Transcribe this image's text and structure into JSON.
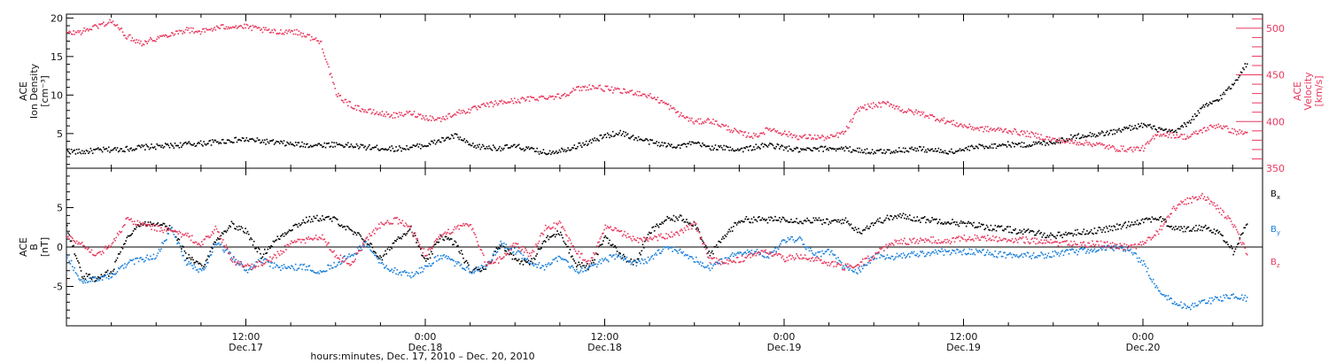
{
  "colors": {
    "black": "#000000",
    "pink": "#e8385e",
    "blue": "#1a7fd9"
  },
  "chart_data": [
    {
      "type": "scatter",
      "panel": "top",
      "ylabel_left_lines": [
        "ACE",
        "Ion Density",
        "[cm⁻³]"
      ],
      "ylabel_right_lines": [
        "ACE",
        "Velocity",
        "[km/s]"
      ],
      "ylim": [
        0.5,
        20.5
      ],
      "y_ticks": [
        5,
        10,
        15,
        20
      ],
      "y_tick_labels": [
        "5",
        "10",
        "15",
        "20"
      ],
      "y2lim": [
        350,
        515
      ],
      "y2_ticks": [
        350,
        400,
        450,
        500
      ],
      "y2_tick_labels": [
        "350",
        "400",
        "450",
        "500"
      ],
      "series": [
        {
          "name": "",
          "axis": "left",
          "color": "#000000",
          "x": [
            0,
            1,
            2,
            3,
            4,
            5,
            6,
            7,
            8,
            9,
            10,
            11,
            12,
            13,
            14,
            15,
            16,
            17,
            18,
            19,
            20,
            21,
            22,
            23,
            24,
            25,
            26,
            27,
            28,
            29,
            30,
            31,
            32,
            33,
            34,
            35,
            36,
            37,
            38,
            39,
            40,
            41,
            42,
            43,
            44,
            45,
            46,
            47,
            48,
            49,
            50,
            51,
            52,
            53,
            54,
            55,
            56,
            57,
            58,
            59,
            60,
            61,
            62,
            63,
            64,
            65,
            66,
            67,
            68,
            69,
            70,
            71,
            72,
            73,
            74,
            75,
            76,
            77,
            78,
            79
          ],
          "y": [
            2.8,
            2.7,
            2.9,
            3.0,
            3.1,
            3.3,
            3.4,
            3.5,
            3.7,
            3.8,
            4.0,
            4.2,
            4.3,
            4.1,
            3.9,
            3.7,
            3.6,
            3.6,
            3.7,
            3.5,
            3.3,
            3.2,
            3.1,
            3.3,
            3.6,
            4.2,
            4.8,
            3.5,
            3.3,
            3.2,
            3.4,
            3.0,
            2.6,
            2.9,
            3.4,
            4.0,
            4.8,
            5.2,
            4.5,
            4.0,
            3.6,
            3.5,
            3.8,
            3.3,
            3.2,
            3.0,
            3.3,
            3.6,
            3.2,
            2.9,
            3.0,
            3.2,
            3.1,
            2.9,
            2.7,
            2.8,
            3.0,
            3.1,
            2.9,
            2.7,
            3.0,
            3.4,
            3.5,
            3.7,
            3.6,
            3.8,
            4.0,
            4.5,
            4.9,
            5.0,
            5.3,
            5.8,
            6.2,
            5.6,
            5.2,
            6.5,
            8.5,
            9.5,
            11.5,
            14.5
          ]
        },
        {
          "name": "",
          "axis": "right",
          "color": "#e8385e",
          "x": [
            0,
            1,
            2,
            3,
            4,
            5,
            6,
            7,
            8,
            9,
            10,
            11,
            12,
            13,
            14,
            15,
            16,
            17,
            18,
            19,
            20,
            21,
            22,
            23,
            24,
            25,
            26,
            27,
            28,
            29,
            30,
            31,
            32,
            33,
            34,
            35,
            36,
            37,
            38,
            39,
            40,
            41,
            42,
            43,
            44,
            45,
            46,
            47,
            48,
            49,
            50,
            51,
            52,
            53,
            54,
            55,
            56,
            57,
            58,
            59,
            60,
            61,
            62,
            63,
            64,
            65,
            66,
            67,
            68,
            69,
            70,
            71,
            72,
            73,
            74,
            75,
            76,
            77,
            78,
            79
          ],
          "y": [
            495,
            497,
            503,
            508,
            492,
            485,
            490,
            495,
            499,
            497,
            501,
            503,
            502,
            499,
            496,
            498,
            493,
            485,
            430,
            418,
            412,
            409,
            407,
            410,
            405,
            403,
            410,
            413,
            418,
            421,
            423,
            425,
            427,
            428,
            435,
            438,
            436,
            433,
            432,
            428,
            420,
            408,
            400,
            402,
            395,
            388,
            385,
            393,
            388,
            384,
            384,
            383,
            389,
            415,
            418,
            420,
            412,
            410,
            405,
            400,
            396,
            393,
            392,
            391,
            388,
            385,
            381,
            379,
            378,
            376,
            372,
            371,
            372,
            388,
            386,
            384,
            392,
            397,
            390,
            388
          ]
        }
      ]
    },
    {
      "type": "scatter",
      "panel": "bottom",
      "ylabel_left_lines": [
        "ACE",
        "B",
        "[nT]"
      ],
      "ylim": [
        -10,
        10
      ],
      "y_ticks": [
        -5,
        0,
        5
      ],
      "y_tick_labels": [
        "-5",
        "0",
        "5"
      ],
      "zero_line": true,
      "legend": [
        {
          "label": "B",
          "sub": "x",
          "color": "#000000"
        },
        {
          "label": "B",
          "sub": "y",
          "color": "#1a7fd9"
        },
        {
          "label": "B",
          "sub": "z",
          "color": "#e8385e"
        }
      ],
      "series": [
        {
          "name": "Bx",
          "color": "#000000",
          "x": [
            0,
            1,
            2,
            3,
            4,
            5,
            6,
            7,
            8,
            9,
            10,
            11,
            12,
            13,
            14,
            15,
            16,
            17,
            18,
            19,
            20,
            21,
            22,
            23,
            24,
            25,
            26,
            27,
            28,
            29,
            30,
            31,
            32,
            33,
            34,
            35,
            36,
            37,
            38,
            39,
            40,
            41,
            42,
            43,
            44,
            45,
            46,
            47,
            48,
            49,
            50,
            51,
            52,
            53,
            54,
            55,
            56,
            57,
            58,
            59,
            60,
            61,
            62,
            63,
            64,
            65,
            66,
            67,
            68,
            69,
            70,
            71,
            72,
            73,
            74,
            75,
            76,
            77,
            78,
            79
          ],
          "y": [
            2.5,
            -3.5,
            -4.0,
            -3.0,
            1.5,
            3.0,
            3.2,
            2.5,
            -1.0,
            -2.5,
            1.0,
            3.0,
            2.0,
            -1.0,
            1.0,
            2.5,
            3.5,
            3.8,
            3.5,
            2.0,
            1.0,
            -1.5,
            1.0,
            2.5,
            -2.0,
            1.5,
            0.5,
            -3.0,
            -2.5,
            0.5,
            -1.5,
            -2.0,
            1.0,
            2.0,
            -2.0,
            -2.5,
            1.5,
            -1.0,
            -2.0,
            2.0,
            3.5,
            3.8,
            3.0,
            -1.0,
            1.5,
            3.5,
            3.6,
            3.5,
            3.7,
            3.4,
            3.5,
            3.2,
            3.5,
            2.0,
            3.2,
            3.8,
            4.0,
            3.6,
            3.5,
            3.3,
            3.0,
            2.8,
            2.5,
            2.3,
            2.0,
            1.8,
            1.5,
            1.8,
            2.0,
            2.2,
            2.5,
            3.0,
            3.5,
            3.8,
            2.5,
            2.3,
            2.6,
            2.0,
            -0.5,
            3.5
          ]
        },
        {
          "name": "By",
          "color": "#1a7fd9",
          "x": [
            0,
            1,
            2,
            3,
            4,
            5,
            6,
            7,
            8,
            9,
            10,
            11,
            12,
            13,
            14,
            15,
            16,
            17,
            18,
            19,
            20,
            21,
            22,
            23,
            24,
            25,
            26,
            27,
            28,
            29,
            30,
            31,
            32,
            33,
            34,
            35,
            36,
            37,
            38,
            39,
            40,
            41,
            42,
            43,
            44,
            45,
            46,
            47,
            48,
            49,
            50,
            51,
            52,
            53,
            54,
            55,
            56,
            57,
            58,
            59,
            60,
            61,
            62,
            63,
            64,
            65,
            66,
            67,
            68,
            69,
            70,
            71,
            72,
            73,
            74,
            75,
            76,
            77,
            78,
            79
          ],
          "y": [
            -1.0,
            -4.5,
            -4.0,
            -3.5,
            -2.0,
            -1.5,
            -1.0,
            2.5,
            -2.0,
            -3.0,
            0.5,
            -1.0,
            -3.0,
            -1.5,
            -2.5,
            -2.5,
            -2.5,
            -3.0,
            -2.0,
            -1.0,
            0.5,
            -2.0,
            -3.0,
            -3.5,
            -2.5,
            -1.0,
            -2.0,
            -3.0,
            -2.5,
            0.5,
            -0.5,
            -2.0,
            -2.5,
            -1.0,
            -3.0,
            -2.5,
            -1.5,
            -1.0,
            -2.0,
            -1.5,
            0.0,
            -0.5,
            -1.5,
            -2.5,
            -1.5,
            -0.5,
            -0.5,
            -1.0,
            1.0,
            1.0,
            -1.0,
            -0.5,
            -2.5,
            -3.0,
            -1.0,
            -1.2,
            -1.0,
            -0.8,
            -0.6,
            -0.5,
            -0.5,
            -0.5,
            -0.8,
            -1.0,
            -1.0,
            -1.0,
            -0.8,
            -0.6,
            -0.4,
            -0.2,
            0.0,
            -0.3,
            -2.0,
            -5.5,
            -7.0,
            -7.5,
            -7.0,
            -6.5,
            -6.0,
            -6.5
          ]
        },
        {
          "name": "Bz",
          "color": "#e8385e",
          "x": [
            0,
            1,
            2,
            3,
            4,
            5,
            6,
            7,
            8,
            9,
            10,
            11,
            12,
            13,
            14,
            15,
            16,
            17,
            18,
            19,
            20,
            21,
            22,
            23,
            24,
            25,
            26,
            27,
            28,
            29,
            30,
            31,
            32,
            33,
            34,
            35,
            36,
            37,
            38,
            39,
            40,
            41,
            42,
            43,
            44,
            45,
            46,
            47,
            48,
            49,
            50,
            51,
            52,
            53,
            54,
            55,
            56,
            57,
            58,
            59,
            60,
            61,
            62,
            63,
            64,
            65,
            66,
            67,
            68,
            69,
            70,
            71,
            72,
            73,
            74,
            75,
            76,
            77,
            78,
            79
          ],
          "y": [
            1.5,
            0.5,
            -1.0,
            0.5,
            3.5,
            3.0,
            2.5,
            2.0,
            1.5,
            0.5,
            2.5,
            -1.5,
            -2.5,
            -2.0,
            -1.0,
            0.5,
            1.0,
            1.5,
            -1.0,
            -2.0,
            1.0,
            3.0,
            3.5,
            2.5,
            -1.0,
            1.5,
            2.5,
            3.0,
            -2.0,
            -1.5,
            0.5,
            -1.0,
            2.5,
            3.0,
            -0.5,
            -2.0,
            2.5,
            2.0,
            1.0,
            1.0,
            1.5,
            2.0,
            3.0,
            -1.5,
            -2.0,
            -1.5,
            -1.0,
            -0.5,
            -1.5,
            -1.0,
            -1.5,
            -2.0,
            -2.5,
            -2.0,
            -1.0,
            0.5,
            0.8,
            0.8,
            1.0,
            0.8,
            1.2,
            1.3,
            1.2,
            1.0,
            1.0,
            0.8,
            0.6,
            0.5,
            0.4,
            0.5,
            0.3,
            0.0,
            0.5,
            2.0,
            5.0,
            6.0,
            6.5,
            5.0,
            3.0,
            -1.0
          ]
        }
      ]
    }
  ],
  "x_axis": {
    "range": [
      0,
      80
    ],
    "major_ticks": [
      0,
      12,
      24,
      36,
      48,
      60,
      72
    ],
    "labels": [
      {
        "x": 12,
        "time": "12:00",
        "date": "Dec.17"
      },
      {
        "x": 24,
        "time": "0:00",
        "date": "Dec.18"
      },
      {
        "x": 36,
        "time": "12:00",
        "date": "Dec.18"
      },
      {
        "x": 48,
        "time": "0:00",
        "date": "Dec.19"
      },
      {
        "x": 60,
        "time": "12:00",
        "date": "Dec.19"
      },
      {
        "x": 72,
        "time": "0:00",
        "date": "Dec.20"
      }
    ],
    "xlabel": "hours:minutes, Dec. 17, 2010 – Dec. 20, 2010"
  }
}
